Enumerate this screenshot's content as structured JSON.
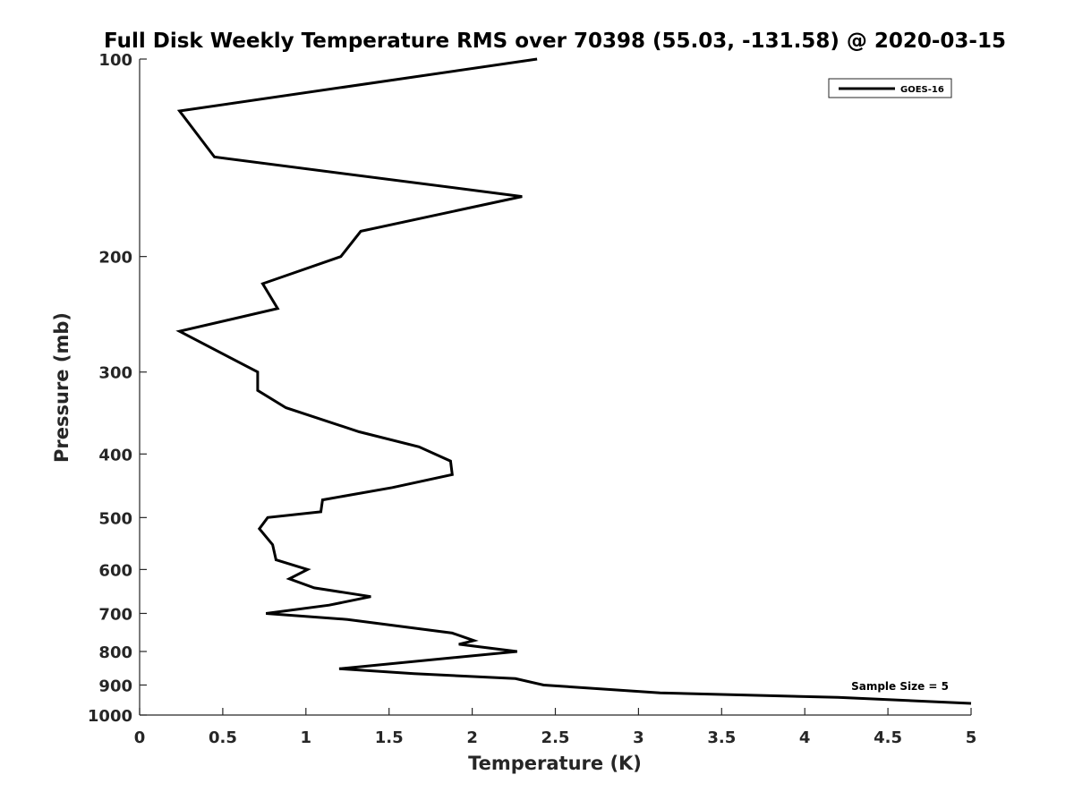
{
  "chart_data": {
    "type": "line",
    "title": "Full Disk Weekly Temperature RMS over 70398 (55.03, -131.58) @ 2020-03-15",
    "xlabel": "Temperature (K)",
    "ylabel": "Pressure (mb)",
    "xlim": [
      0,
      5
    ],
    "ylim": [
      1000,
      100
    ],
    "y_scale": "log",
    "y_reversed": true,
    "xticks": [
      "0",
      "0.5",
      "1",
      "1.5",
      "2",
      "2.5",
      "3",
      "3.5",
      "4",
      "4.5",
      "5"
    ],
    "yticks": [
      "100",
      "200",
      "300",
      "400",
      "500",
      "600",
      "700",
      "800",
      "900",
      "1000"
    ],
    "grid": false,
    "legend": {
      "position": "top-right",
      "entries": [
        "GOES-16"
      ]
    },
    "annotation": "Sample Size = 5",
    "line_color": "#000000",
    "series": [
      {
        "name": "GOES-16",
        "points": [
          [
            2.39,
            100
          ],
          [
            0.24,
            120
          ],
          [
            0.45,
            141
          ],
          [
            2.3,
            162
          ],
          [
            1.33,
            183
          ],
          [
            1.21,
            200
          ],
          [
            0.74,
            220
          ],
          [
            0.83,
            240
          ],
          [
            0.24,
            260
          ],
          [
            0.71,
            300
          ],
          [
            0.71,
            320
          ],
          [
            0.88,
            340
          ],
          [
            1.32,
            370
          ],
          [
            1.68,
            390
          ],
          [
            1.87,
            410
          ],
          [
            1.88,
            430
          ],
          [
            1.52,
            450
          ],
          [
            1.1,
            470
          ],
          [
            1.09,
            490
          ],
          [
            0.77,
            500
          ],
          [
            0.72,
            520
          ],
          [
            0.8,
            550
          ],
          [
            0.82,
            580
          ],
          [
            1.01,
            600
          ],
          [
            0.9,
            620
          ],
          [
            1.05,
            640
          ],
          [
            1.39,
            660
          ],
          [
            1.14,
            680
          ],
          [
            0.76,
            700
          ],
          [
            1.25,
            715
          ],
          [
            1.88,
            750
          ],
          [
            2.01,
            770
          ],
          [
            1.92,
            780
          ],
          [
            2.27,
            800
          ],
          [
            1.2,
            850
          ],
          [
            1.65,
            865
          ],
          [
            2.26,
            880
          ],
          [
            2.43,
            900
          ],
          [
            3.13,
            925
          ],
          [
            4.2,
            940
          ],
          [
            5.0,
            960
          ]
        ]
      }
    ]
  }
}
